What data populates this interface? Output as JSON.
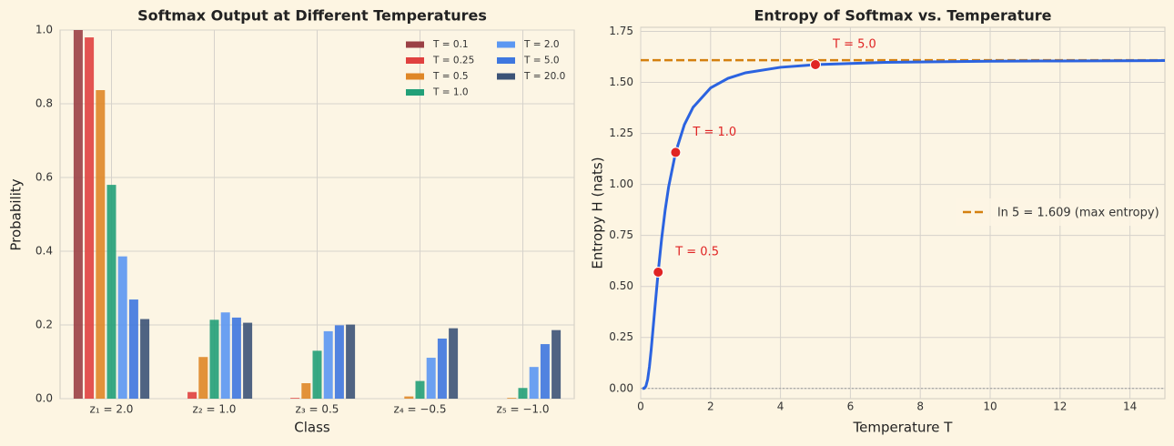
{
  "chart_data": [
    {
      "type": "bar",
      "title": "Softmax Output at Different Temperatures",
      "x_label": "Class",
      "y_label": "Probability",
      "categories": [
        "z₁ = 2.0",
        "z₂ = 1.0",
        "z₃ = 0.5",
        "z₄ = −0.5",
        "z₅ = −1.0"
      ],
      "series": [
        {
          "name": "T = 0.1",
          "color": "#9b4045",
          "values": [
            1.0,
            0.0,
            0.0,
            0.0,
            0.0
          ]
        },
        {
          "name": "T = 0.25",
          "color": "#e0413f",
          "values": [
            0.98,
            0.018,
            0.002,
            0.0,
            0.0
          ]
        },
        {
          "name": "T = 0.5",
          "color": "#df8727",
          "values": [
            0.837,
            0.113,
            0.042,
            0.006,
            0.002
          ]
        },
        {
          "name": "T = 1.0",
          "color": "#22a078",
          "values": [
            0.58,
            0.214,
            0.13,
            0.048,
            0.029
          ]
        },
        {
          "name": "T = 2.0",
          "color": "#5b97f2",
          "values": [
            0.386,
            0.234,
            0.183,
            0.111,
            0.086
          ]
        },
        {
          "name": "T = 5.0",
          "color": "#3e77df",
          "values": [
            0.269,
            0.22,
            0.199,
            0.163,
            0.148
          ]
        },
        {
          "name": "T = 20.0",
          "color": "#3c5377",
          "values": [
            0.216,
            0.206,
            0.201,
            0.191,
            0.186
          ]
        }
      ],
      "ylim": [
        0,
        1
      ],
      "yticks": [
        {
          "value": 0,
          "label": "0.0"
        },
        {
          "value": 0.2,
          "label": "0.2"
        },
        {
          "value": 0.4,
          "label": "0.4"
        },
        {
          "value": 0.6,
          "label": "0.6"
        },
        {
          "value": 0.8,
          "label": "0.8"
        },
        {
          "value": 1,
          "label": "1.0"
        }
      ],
      "grid": true,
      "legend": "upper right",
      "legend_columns": 2
    },
    {
      "type": "line",
      "title": "Entropy of Softmax vs. Temperature",
      "x_label": "Temperature T",
      "y_label": "Entropy H (nats)",
      "x": [
        0.05,
        0.1,
        0.15,
        0.2,
        0.25,
        0.3,
        0.4,
        0.5,
        0.6,
        0.7,
        0.8,
        1,
        1.25,
        1.5,
        2,
        2.5,
        3,
        4,
        5,
        7,
        10,
        12,
        15
      ],
      "values": [
        0,
        0.0005,
        0.0115,
        0.045,
        0.107,
        0.19,
        0.382,
        0.57,
        0.735,
        0.874,
        0.989,
        1.157,
        1.293,
        1.378,
        1.473,
        1.52,
        1.547,
        1.574,
        1.587,
        1.598,
        1.604,
        1.605,
        1.607
      ],
      "color": "#2b63e0",
      "xlim": [
        0,
        15
      ],
      "xticks": [
        0,
        2,
        4,
        6,
        8,
        10,
        12,
        14
      ],
      "ylim": [
        -0.05,
        1.77
      ],
      "yticks": [
        {
          "value": 0,
          "label": "0.00"
        },
        {
          "value": 0.25,
          "label": "0.25"
        },
        {
          "value": 0.5,
          "label": "0.50"
        },
        {
          "value": 0.75,
          "label": "0.75"
        },
        {
          "value": 1,
          "label": "1.00"
        },
        {
          "value": 1.25,
          "label": "1.25"
        },
        {
          "value": 1.5,
          "label": "1.50"
        },
        {
          "value": 1.75,
          "label": "1.75"
        }
      ],
      "grid": true,
      "reference_line": {
        "value": 1.609,
        "label": "ln 5 = 1.609 (max entropy)",
        "color": "#d4800f",
        "style": "dashed"
      },
      "baseline": {
        "value": 0,
        "style": "dotted"
      },
      "points": {
        "x": [
          0.5,
          1.0,
          5.0
        ],
        "values": [
          0.57,
          1.157,
          1.587
        ],
        "labels": [
          "T = 0.5",
          "T = 1.0",
          "T = 5.0"
        ],
        "color": "#e02424"
      },
      "legend": "center right"
    }
  ]
}
